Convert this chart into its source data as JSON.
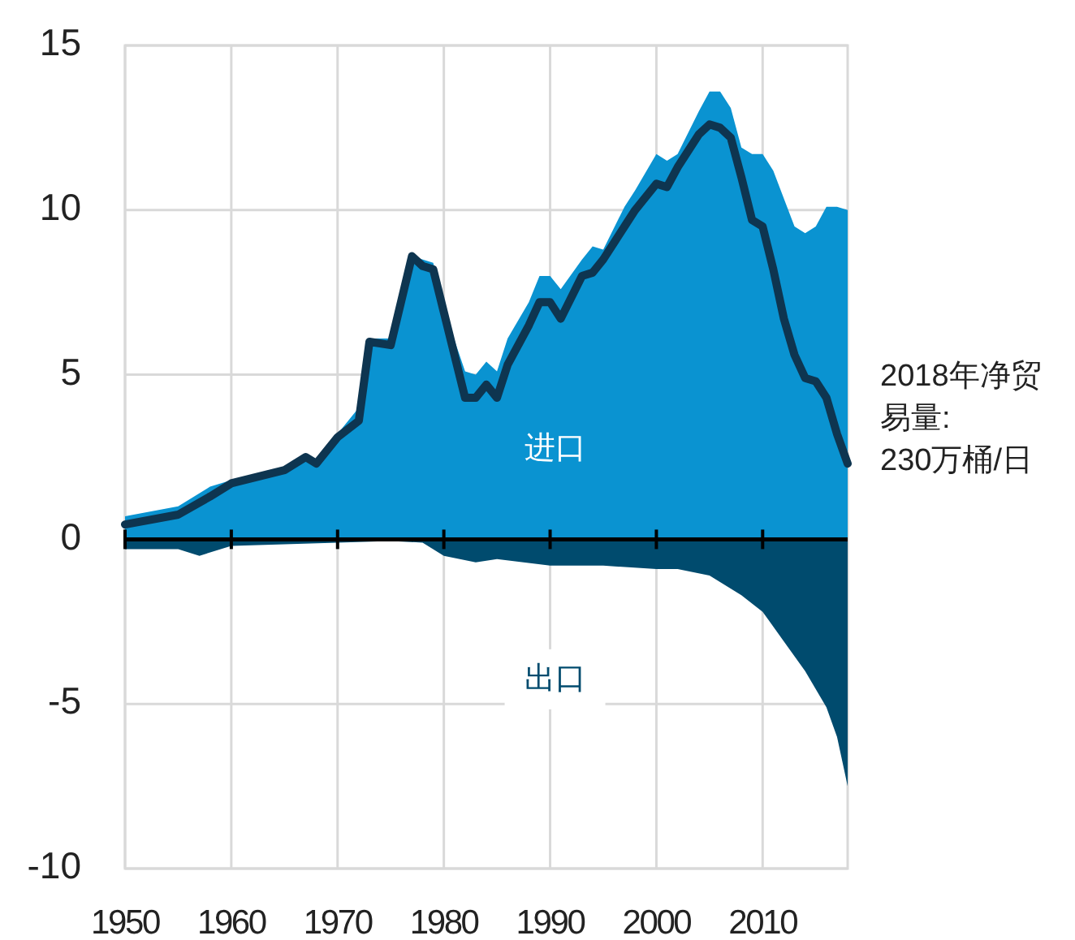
{
  "chart_data": {
    "type": "area",
    "xlim": [
      1950,
      2018
    ],
    "xticks": [
      1950,
      1960,
      1970,
      1980,
      1990,
      2000,
      2010
    ],
    "ylim": [
      -10,
      15
    ],
    "yticks": [
      -10,
      -5,
      0,
      5,
      10,
      15
    ],
    "grid": true,
    "series": [
      {
        "name": "进口",
        "color": "#0a93d1",
        "x": [
          1950,
          1955,
          1958,
          1960,
          1965,
          1967,
          1968,
          1970,
          1972,
          1973,
          1975,
          1977,
          1979,
          1980,
          1982,
          1983,
          1984,
          1985,
          1986,
          1988,
          1989,
          1990,
          1991,
          1993,
          1994,
          1995,
          1997,
          1998,
          2000,
          2001,
          2002,
          2004,
          2005,
          2006,
          2007,
          2008,
          2009,
          2010,
          2011,
          2013,
          2014,
          2015,
          2016,
          2017,
          2018
        ],
        "values": [
          0.7,
          1.0,
          1.6,
          1.8,
          2.2,
          2.5,
          2.4,
          3.2,
          4.0,
          6.1,
          6.1,
          8.6,
          8.4,
          7.0,
          5.1,
          5.0,
          5.4,
          5.1,
          6.1,
          7.2,
          8.0,
          8.0,
          7.6,
          8.5,
          8.9,
          8.8,
          10.1,
          10.6,
          11.7,
          11.5,
          11.7,
          13.0,
          13.6,
          13.6,
          13.1,
          11.9,
          11.7,
          11.7,
          11.2,
          9.5,
          9.3,
          9.5,
          10.1,
          10.1,
          10.0
        ]
      },
      {
        "name": "出口",
        "color": "#004b6e",
        "x": [
          1950,
          1955,
          1957,
          1960,
          1970,
          1975,
          1978,
          1980,
          1983,
          1985,
          1990,
          1995,
          2000,
          2002,
          2005,
          2008,
          2010,
          2012,
          2014,
          2016,
          2017,
          2018
        ],
        "values": [
          -0.3,
          -0.3,
          -0.5,
          -0.2,
          -0.1,
          -0.05,
          -0.1,
          -0.5,
          -0.7,
          -0.6,
          -0.8,
          -0.8,
          -0.9,
          -0.9,
          -1.1,
          -1.7,
          -2.2,
          -3.1,
          -4.0,
          -5.1,
          -6.0,
          -7.5
        ]
      },
      {
        "type": "line",
        "color": "#0e3550",
        "x": [
          1950,
          1955,
          1958,
          1960,
          1965,
          1967,
          1968,
          1970,
          1972,
          1973,
          1975,
          1977,
          1978,
          1979,
          1980,
          1982,
          1983,
          1984,
          1985,
          1986,
          1988,
          1989,
          1990,
          1991,
          1993,
          1994,
          1995,
          1997,
          1998,
          2000,
          2001,
          2002,
          2004,
          2005,
          2006,
          2007,
          2008,
          2009,
          2010,
          2011,
          2012,
          2013,
          2014,
          2015,
          2016,
          2017,
          2018
        ],
        "values": [
          0.45,
          0.75,
          1.3,
          1.7,
          2.1,
          2.5,
          2.3,
          3.1,
          3.6,
          6.0,
          5.9,
          8.6,
          8.3,
          8.2,
          6.9,
          4.3,
          4.3,
          4.7,
          4.3,
          5.3,
          6.5,
          7.2,
          7.2,
          6.7,
          8.0,
          8.1,
          8.5,
          9.5,
          10.0,
          10.8,
          10.7,
          11.3,
          12.3,
          12.6,
          12.5,
          12.2,
          11.0,
          9.7,
          9.5,
          8.2,
          6.7,
          5.6,
          4.9,
          4.8,
          4.3,
          3.2,
          2.3
        ]
      }
    ],
    "annotations": [
      {
        "text": "2018年净贸易量: 230万桶/日",
        "x": 2018,
        "y": 2.3
      }
    ]
  }
}
